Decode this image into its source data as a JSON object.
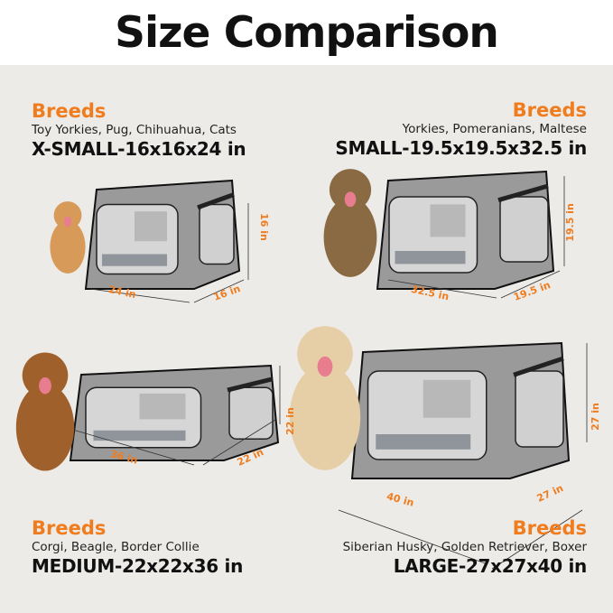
{
  "title": "Size Comparison",
  "colors": {
    "accent": "#f07c1e",
    "background": "#ecebe8",
    "tent": "#9a9a9a"
  },
  "sizes": [
    {
      "breeds_label": "Breeds",
      "breeds": "Toy Yorkies, Pug, Chihuahua, Cats",
      "name": "X-SMALL",
      "dims": "-16x16x24 in",
      "height": "16 in",
      "length": "24 in",
      "width": "16 in",
      "animal": "kitten"
    },
    {
      "breeds_label": "Breeds",
      "breeds": "Yorkies, Pomeranians, Maltese",
      "name": "SMALL",
      "dims": "-19.5x19.5x32.5 in",
      "height": "19.5 in",
      "length": "32.5 in",
      "width": "19.5 in",
      "animal": "yorkshire-terrier"
    },
    {
      "breeds_label": "Breeds",
      "breeds": "Corgi, Beagle, Border Collie",
      "name": "MEDIUM",
      "dims": "-22x22x36 in",
      "height": "22 in",
      "length": "36 in",
      "width": "22 in",
      "animal": "beagle"
    },
    {
      "breeds_label": "Breeds",
      "breeds": "Siberian Husky, Golden Retriever, Boxer",
      "name": "LARGE",
      "dims": "-27x27x40 in",
      "height": "27 in",
      "length": "40 in",
      "width": "27 in",
      "animal": "golden-retriever"
    }
  ]
}
